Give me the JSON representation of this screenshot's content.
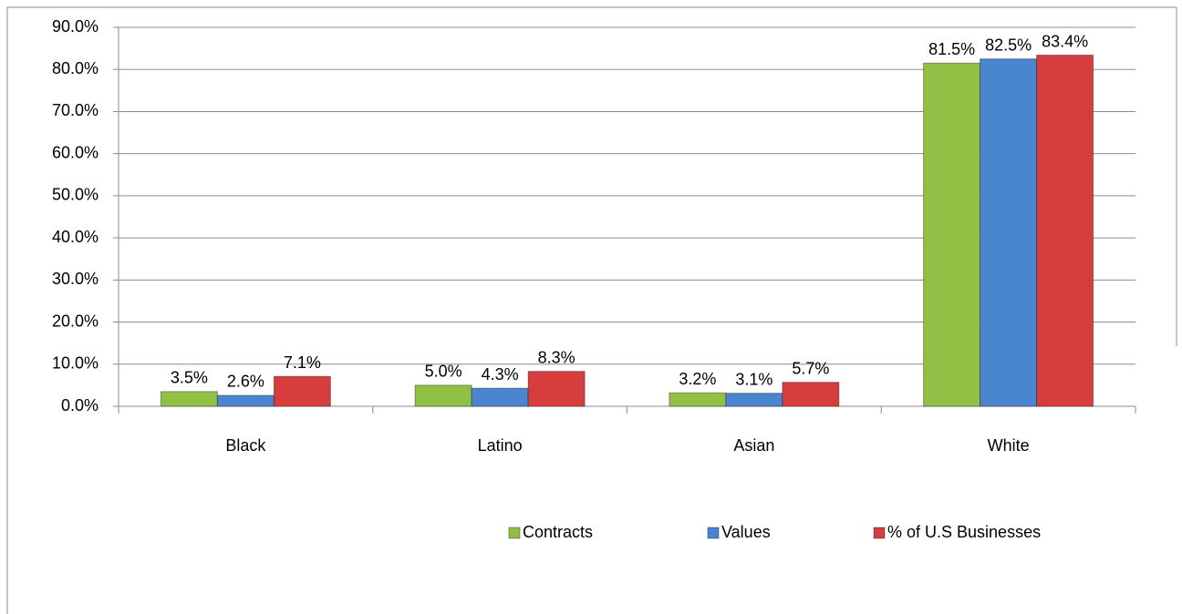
{
  "chart_data": {
    "type": "bar",
    "categories": [
      "Black",
      "Latino",
      "Asian",
      "White"
    ],
    "series": [
      {
        "name": "Contracts",
        "color": "#92c045",
        "values": [
          3.5,
          5.0,
          3.2,
          81.5
        ],
        "value_labels": [
          "3.5%",
          "5.0%",
          "3.2%",
          "81.5%"
        ]
      },
      {
        "name": "Values",
        "color": "#4a86d0",
        "values": [
          2.6,
          4.3,
          3.1,
          82.5
        ],
        "value_labels": [
          "2.6%",
          "4.3%",
          "3.1%",
          "82.5%"
        ]
      },
      {
        "name": "% of U.S Businesses",
        "color": "#d63d3d",
        "values": [
          7.1,
          8.3,
          5.7,
          83.4
        ],
        "value_labels": [
          "7.1%",
          "8.3%",
          "5.7%",
          "83.4%"
        ]
      }
    ],
    "ylim": [
      0,
      90
    ],
    "yticks": [
      {
        "value": 0,
        "label": "0.0%"
      },
      {
        "value": 10,
        "label": "10.0%"
      },
      {
        "value": 20,
        "label": "20.0%"
      },
      {
        "value": 30,
        "label": "30.0%"
      },
      {
        "value": 40,
        "label": "40.0%"
      },
      {
        "value": 50,
        "label": "50.0%"
      },
      {
        "value": 60,
        "label": "60.0%"
      },
      {
        "value": 70,
        "label": "70.0%"
      },
      {
        "value": 80,
        "label": "80.0%"
      },
      {
        "value": 90,
        "label": "90.0%"
      }
    ],
    "grid": true,
    "legend": "bottom"
  }
}
